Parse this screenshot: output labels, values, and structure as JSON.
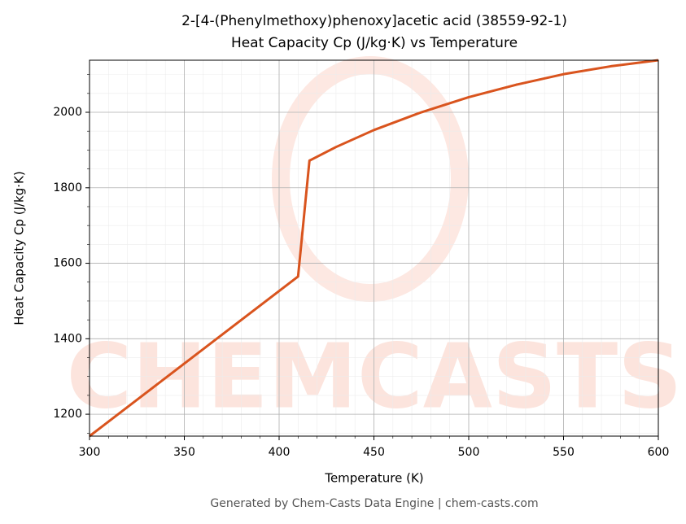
{
  "chart_data": {
    "type": "line",
    "title": "2-[4-(Phenylmethoxy)phenoxy]acetic acid (38559-92-1)",
    "subtitle": "Heat Capacity Cp (J/kg·K) vs Temperature",
    "x_label": "Temperature (K)",
    "y_label": "Heat Capacity Cp (J/kg·K)",
    "footer": "Generated by Chem-Casts Data Engine | chem-casts.com",
    "watermark": "CHEMCASTS",
    "x": [
      300,
      410,
      416,
      430,
      450,
      475,
      500,
      525,
      550,
      575,
      600
    ],
    "series": [
      {
        "name": "Cp",
        "color": "#d9541e",
        "values": [
          1142,
          1565,
          1872,
          1908,
          1953,
          2000,
          2040,
          2073,
          2101,
          2122,
          2138
        ]
      }
    ],
    "xlim": [
      300,
      600
    ],
    "xticks": [
      300,
      350,
      400,
      450,
      500,
      550,
      600
    ],
    "ylim": [
      1142,
      2138
    ],
    "yticks": [
      1200,
      1400,
      1600,
      1800,
      2000
    ],
    "grid": true,
    "minor_grid": true
  }
}
